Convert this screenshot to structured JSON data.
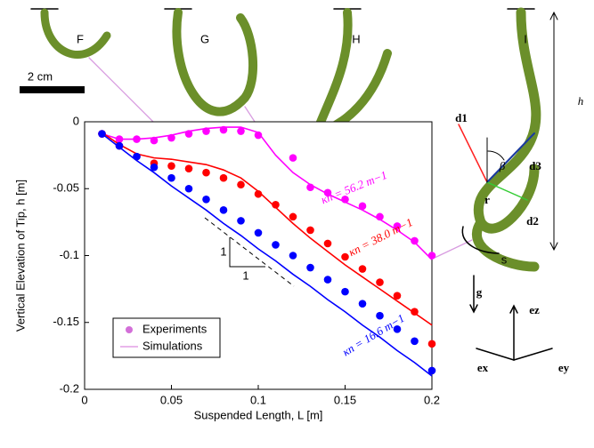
{
  "chart_data": {
    "type": "scatter-line",
    "x_label": "Suspended Length, L [m]",
    "y_label": "Vertical Elevation of Tip, h [m]",
    "xlim": [
      0,
      0.2
    ],
    "ylim": [
      -0.2,
      0
    ],
    "xticks": [
      0,
      0.05,
      0.1,
      0.15,
      0.2
    ],
    "yticks": [
      -0.2,
      -0.15,
      -0.1,
      -0.05,
      0
    ],
    "x": [
      0.01,
      0.02,
      0.03,
      0.04,
      0.05,
      0.06,
      0.07,
      0.08,
      0.09,
      0.1,
      0.11,
      0.12,
      0.13,
      0.14,
      0.15,
      0.16,
      0.17,
      0.18,
      0.19,
      0.2
    ],
    "series": [
      {
        "name": "κn = 56.2 m−1",
        "color": "#ff00ff",
        "experiments": [
          -0.009,
          -0.013,
          -0.013,
          -0.014,
          -0.012,
          -0.009,
          -0.007,
          -0.006,
          -0.007,
          -0.01,
          null,
          -0.027,
          -0.049,
          -0.053,
          -0.058,
          -0.063,
          -0.071,
          -0.078,
          -0.089,
          -0.1
        ],
        "simulations": [
          -0.009,
          -0.013,
          -0.013,
          -0.012,
          -0.01,
          -0.007,
          -0.005,
          -0.004,
          -0.004,
          -0.008,
          -0.025,
          -0.038,
          -0.047,
          -0.054,
          -0.06,
          -0.066,
          -0.073,
          -0.081,
          -0.09,
          -0.103
        ]
      },
      {
        "name": "κn = 38.0 m−1",
        "color": "#ff0000",
        "experiments": [
          -0.009,
          -0.018,
          -0.026,
          -0.031,
          -0.033,
          -0.035,
          -0.038,
          -0.042,
          -0.047,
          -0.054,
          -0.062,
          -0.071,
          -0.081,
          -0.091,
          -0.101,
          -0.11,
          -0.12,
          -0.13,
          -0.142,
          -0.166
        ],
        "simulations": [
          -0.008,
          -0.017,
          -0.024,
          -0.027,
          -0.028,
          -0.03,
          -0.032,
          -0.036,
          -0.042,
          -0.052,
          -0.064,
          -0.076,
          -0.087,
          -0.097,
          -0.107,
          -0.116,
          -0.125,
          -0.134,
          -0.143,
          -0.152
        ]
      },
      {
        "name": "κn = 16.6 m−1",
        "color": "#0000ff",
        "experiments": [
          -0.009,
          -0.018,
          -0.026,
          -0.034,
          -0.042,
          -0.05,
          -0.058,
          -0.066,
          -0.074,
          -0.083,
          -0.092,
          -0.1,
          -0.109,
          -0.118,
          -0.127,
          -0.136,
          -0.145,
          -0.155,
          -0.164,
          -0.186
        ],
        "simulations": [
          -0.009,
          -0.019,
          -0.029,
          -0.038,
          -0.048,
          -0.057,
          -0.066,
          -0.076,
          -0.085,
          -0.095,
          -0.104,
          -0.114,
          -0.123,
          -0.133,
          -0.142,
          -0.152,
          -0.161,
          -0.171,
          -0.18,
          -0.19
        ]
      }
    ],
    "legend": [
      {
        "label": "Experiments",
        "color": "#d36fd8"
      },
      {
        "label": "Simulations",
        "color": "#d36fd8"
      }
    ],
    "slope_labels": [
      "1",
      "1"
    ],
    "annotations": [
      "F",
      "G",
      "H",
      "I",
      "2 cm",
      "h",
      "d1",
      "β",
      "d3",
      "r",
      "d2",
      "s",
      "g",
      "ez",
      "ex",
      "ey"
    ]
  }
}
